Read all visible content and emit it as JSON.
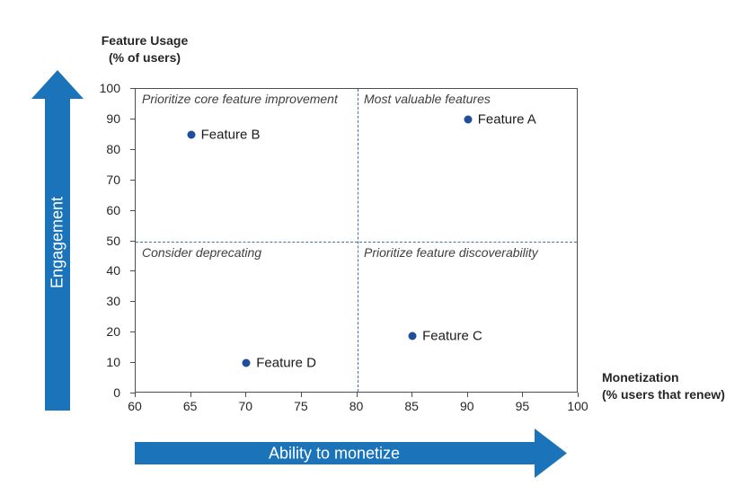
{
  "chart_data": {
    "type": "scatter",
    "x_axis": {
      "label_line1": "Monetization",
      "label_line2": "(% users that renew)",
      "range": [
        60,
        100
      ],
      "ticks": [
        60,
        65,
        70,
        75,
        80,
        85,
        90,
        95,
        100
      ]
    },
    "y_axis": {
      "label_line1": "Feature Usage",
      "label_line2": "(% of users)",
      "range": [
        0,
        100
      ],
      "ticks": [
        0,
        10,
        20,
        30,
        40,
        50,
        60,
        70,
        80,
        90,
        100
      ]
    },
    "points": [
      {
        "name": "Feature A",
        "x": 90,
        "y": 90
      },
      {
        "name": "Feature B",
        "x": 65,
        "y": 85
      },
      {
        "name": "Feature C",
        "x": 85,
        "y": 19
      },
      {
        "name": "Feature D",
        "x": 70,
        "y": 10
      }
    ],
    "quadrant_lines": {
      "x": 80,
      "y": 50
    },
    "quadrant_labels": {
      "top_left": "Prioritize core feature improvement",
      "top_right": "Most valuable features",
      "bottom_left": "Consider deprecating",
      "bottom_right": "Prioritize feature discoverability"
    },
    "arrows": {
      "vertical_label": "Engagement",
      "horizontal_label": "Ability to monetize"
    },
    "colors": {
      "arrow": "#1b74b9",
      "point": "#1f4e9b",
      "dashed_line": "#4273ad",
      "plot_border": "#4d4d4d"
    },
    "layout": {
      "grid": false,
      "legend": "none"
    }
  }
}
